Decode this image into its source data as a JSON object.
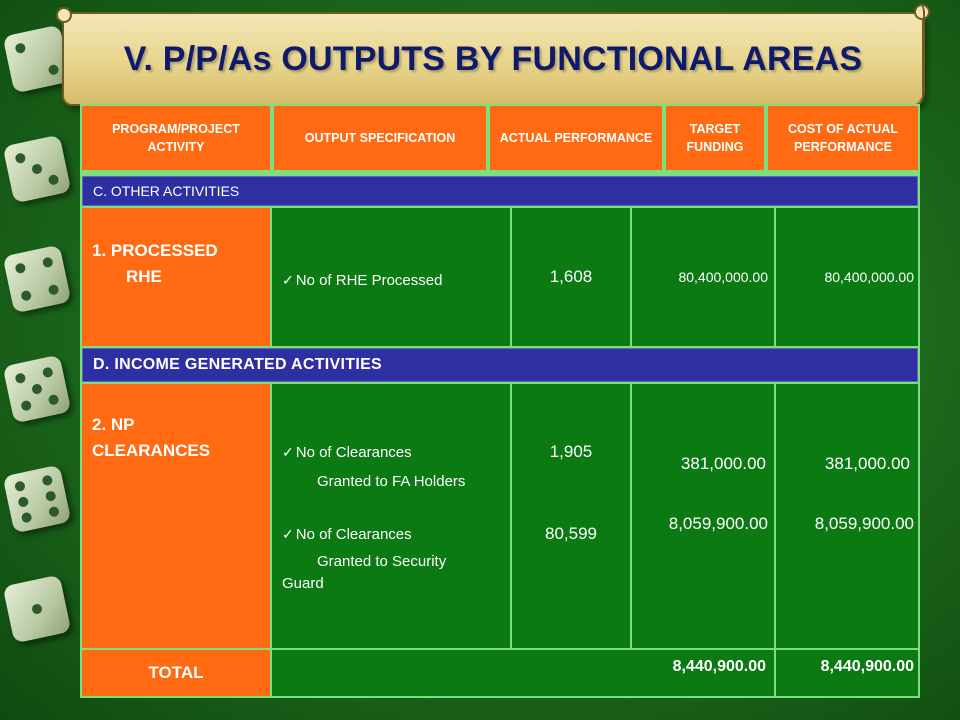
{
  "title": "V. P/P/As OUTPUTS BY FUNCTIONAL AREAS",
  "headers": {
    "program": "PROGRAM/PROJECT ACTIVITY",
    "output": "OUTPUT SPECIFICATION",
    "actual": "ACTUAL PERFORMANCE",
    "target": "TARGET FUNDING",
    "cost": "COST OF ACTUAL PERFORMANCE"
  },
  "sections": {
    "c_label": "C.  OTHER ACTIVITIES",
    "d_label": "D.  INCOME GENERATED ACTIVITIES"
  },
  "row1": {
    "program_line1": "1. PROCESSED",
    "program_line2": "RHE",
    "spec": "No of RHE Processed",
    "actual": "1,608",
    "target": "80,400,000.00",
    "cost": "80,400,000.00"
  },
  "row2": {
    "program_line1": "2.  NP",
    "program_line2": "CLEARANCES",
    "spec1_line1": "No of Clearances",
    "spec1_line2": "Granted to FA Holders",
    "spec2_line1": "No of Clearances",
    "spec2_line2": "Granted to Security",
    "spec2_line3": "Guard",
    "actual1": "1,905",
    "actual2": "80,599",
    "target1": "381,000.00",
    "target2": "8,059,900.00",
    "cost1": "381,000.00",
    "cost2": "8,059,900.00"
  },
  "total": {
    "label": "TOTAL",
    "target": "8,440,900.00",
    "cost": "8,440,900.00"
  },
  "colors": {
    "orange": "#ff6a12",
    "band_blue": "#2e2fa3",
    "cell_green": "#0b7a12",
    "title_navy": "#101a6b"
  }
}
